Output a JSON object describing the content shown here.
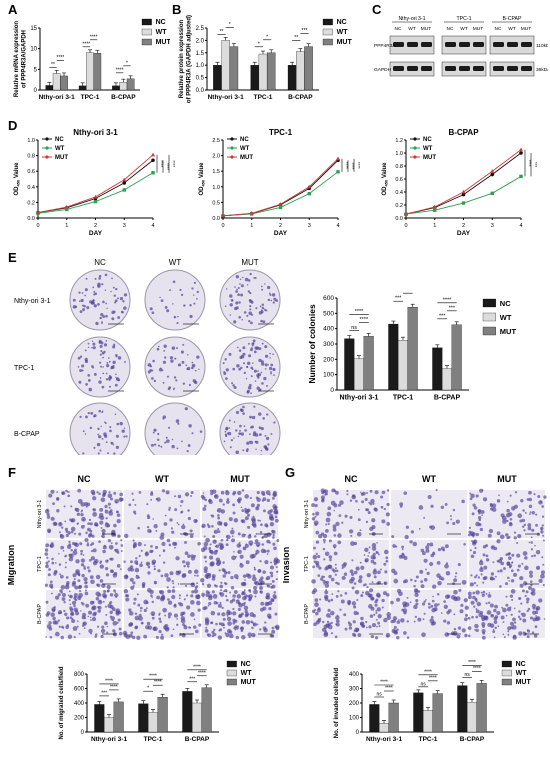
{
  "panels": {
    "A": "A",
    "B": "B",
    "C": "C",
    "D": "D",
    "E": "E",
    "F": "F",
    "G": "G"
  },
  "groups": [
    "NC",
    "WT",
    "MUT"
  ],
  "cells": [
    "Nthy-ori 3-1",
    "TPC-1",
    "B-CPAP"
  ],
  "colors": {
    "nc": "#1a1a1a",
    "wt": "#dcdcdc",
    "mut": "#808080",
    "d_nc": "#111111",
    "d_wt": "#2e9e4f",
    "d_mut": "#d03a3a",
    "stain": "#5a4a9e"
  },
  "blotC": {
    "cell_labels": [
      "Nthy-ori 3-1",
      "TPC-1",
      "B-CPAP"
    ],
    "lane_labels": [
      "NC",
      "WT",
      "MUT"
    ],
    "row_labels": [
      "PPP4R3A",
      "GAPDH"
    ],
    "kda_labels": [
      "110kDa",
      "36kDa"
    ]
  },
  "chartA": {
    "type": "bar",
    "ylabel_lines": [
      "Relative mRNA expression",
      "of PPP4R3A/GAPDH"
    ],
    "ylim": [
      0,
      15
    ],
    "yticks": [
      "0",
      "5",
      "10",
      "15"
    ],
    "categories": [
      "Nthy-ori 3-1",
      "TPC-1",
      "B-CPAP"
    ],
    "series": [
      {
        "name": "NC",
        "values": [
          1.1,
          1.0,
          1.0
        ]
      },
      {
        "name": "WT",
        "values": [
          4.0,
          9.0,
          1.9
        ]
      },
      {
        "name": "MUT",
        "values": [
          3.4,
          8.9,
          2.7
        ]
      }
    ],
    "sig": [
      [
        "**",
        "****"
      ],
      [
        "****",
        "****"
      ],
      [
        "****",
        "*"
      ]
    ]
  },
  "chartB": {
    "type": "bar",
    "ylabel_lines": [
      "Relative protein expression",
      "of PPP4R3A (GAPDH adjusted)"
    ],
    "ylim": [
      0,
      2.5
    ],
    "yticks": [
      "0.0",
      "0.5",
      "1.0",
      "1.5",
      "2.0",
      "2.5"
    ],
    "categories": [
      "Nthy-ori 3-1",
      "TPC-1",
      "B-CPAP"
    ],
    "series": [
      {
        "name": "NC",
        "values": [
          1.0,
          1.0,
          1.0
        ]
      },
      {
        "name": "WT",
        "values": [
          2.0,
          1.45,
          1.55
        ]
      },
      {
        "name": "MUT",
        "values": [
          1.75,
          1.5,
          1.75
        ]
      }
    ],
    "sig": [
      [
        "**",
        "*"
      ],
      [
        "*",
        "*"
      ],
      [
        "**",
        "***"
      ]
    ]
  },
  "chartD": [
    {
      "type": "line",
      "title": "Nthy-ori 3-1",
      "xlabel": "DAY",
      "ylim": [
        0,
        1.0
      ],
      "yticks": [
        "0.0",
        "0.2",
        "0.4",
        "0.6",
        "0.8",
        "1.0"
      ],
      "x": [
        0,
        1,
        2,
        3,
        4
      ],
      "series": [
        {
          "name": "NC",
          "values": [
            0.07,
            0.13,
            0.25,
            0.45,
            0.74
          ]
        },
        {
          "name": "WT",
          "values": [
            0.06,
            0.11,
            0.21,
            0.36,
            0.58
          ]
        },
        {
          "name": "MUT",
          "values": [
            0.07,
            0.14,
            0.27,
            0.49,
            0.81
          ]
        }
      ],
      "sig": [
        "****",
        "****",
        "****"
      ]
    },
    {
      "type": "line",
      "title": "TPC-1",
      "xlabel": "DAY",
      "ylim": [
        0,
        2.5
      ],
      "yticks": [
        "0.0",
        "0.5",
        "1.0",
        "1.5",
        "2.0",
        "2.5"
      ],
      "x": [
        0,
        1,
        2,
        3,
        4
      ],
      "series": [
        {
          "name": "NC",
          "values": [
            0.07,
            0.14,
            0.42,
            0.95,
            1.85
          ]
        },
        {
          "name": "WT",
          "values": [
            0.07,
            0.13,
            0.34,
            0.78,
            1.48
          ]
        },
        {
          "name": "MUT",
          "values": [
            0.07,
            0.15,
            0.44,
            1.0,
            1.9
          ]
        }
      ],
      "sig": [
        "****",
        "****",
        "****"
      ]
    },
    {
      "type": "line",
      "title": "B-CPAP",
      "xlabel": "DAY",
      "ylim": [
        0,
        1.2
      ],
      "yticks": [
        "0.0",
        "0.2",
        "0.4",
        "0.6",
        "0.8",
        "1.0",
        "1.2"
      ],
      "x": [
        0,
        1,
        2,
        3,
        4
      ],
      "series": [
        {
          "name": "NC",
          "values": [
            0.06,
            0.16,
            0.36,
            0.67,
            1.0
          ]
        },
        {
          "name": "WT",
          "values": [
            0.06,
            0.12,
            0.23,
            0.38,
            0.64
          ]
        },
        {
          "name": "MUT",
          "values": [
            0.06,
            0.17,
            0.4,
            0.72,
            1.05
          ]
        }
      ],
      "sig": [
        "****",
        "***"
      ]
    }
  ],
  "chartE": {
    "type": "bar",
    "ylabel": "Number of colonies",
    "ylim": [
      0,
      600
    ],
    "yticks": [
      "0",
      "100",
      "200",
      "300",
      "400",
      "500",
      "600"
    ],
    "categories": [
      "Nthy-ori 3-1",
      "TPC-1",
      "B-CPAP"
    ],
    "series": [
      {
        "name": "NC",
        "values": [
          335,
          430,
          275
        ]
      },
      {
        "name": "WT",
        "values": [
          205,
          325,
          140
        ]
      },
      {
        "name": "MUT",
        "values": [
          350,
          540,
          425
        ]
      }
    ],
    "sig": [
      [
        "ns",
        "****",
        "****"
      ],
      [
        "***",
        "***",
        "****"
      ],
      [
        "***",
        "***",
        "****"
      ]
    ]
  },
  "chartF": {
    "type": "bar",
    "ylabel_lines": [
      "No. of migrated cells/field"
    ],
    "ylim": [
      0,
      800
    ],
    "yticks": [
      "0",
      "200",
      "400",
      "600",
      "800"
    ],
    "categories": [
      "Nthy-ori 3-1",
      "TPC-1",
      "B-CPAP"
    ],
    "series": [
      {
        "name": "NC",
        "values": [
          380,
          390,
          560
        ]
      },
      {
        "name": "WT",
        "values": [
          200,
          270,
          400
        ]
      },
      {
        "name": "MUT",
        "values": [
          415,
          480,
          610
        ]
      }
    ],
    "sig": [
      [
        "***",
        "****",
        "****"
      ],
      [
        "*",
        "****",
        "****"
      ],
      [
        "***",
        "****",
        "****"
      ]
    ]
  },
  "chartG": {
    "type": "bar",
    "ylabel_lines": [
      "No. of invaded cells/field"
    ],
    "ylim": [
      0,
      400
    ],
    "yticks": [
      "0",
      "100",
      "200",
      "300",
      "400"
    ],
    "categories": [
      "Nthy-ori 3-1",
      "TPC-1",
      "B-CPAP"
    ],
    "series": [
      {
        "name": "NC",
        "values": [
          190,
          270,
          320
        ]
      },
      {
        "name": "WT",
        "values": [
          60,
          150,
          205
        ]
      },
      {
        "name": "MUT",
        "values": [
          200,
          265,
          335
        ]
      }
    ],
    "sig": [
      [
        "ns",
        "****",
        "****"
      ],
      [
        "ns",
        "****",
        "****"
      ],
      [
        "ns",
        "****",
        "****"
      ]
    ]
  },
  "imageGridE": {
    "col_labels": [
      "NC",
      "WT",
      "MUT"
    ],
    "row_labels": [
      "Nthy-ori 3-1",
      "TPC-1",
      "B-CPAP"
    ]
  },
  "imageGridF": {
    "col_labels": [
      "NC",
      "WT",
      "MUT"
    ],
    "row_labels": [
      "Nthy-ori 3-1",
      "TPC-1",
      "B-CPAP"
    ],
    "side_label": "Migration"
  },
  "imageGridG": {
    "col_labels": [
      "NC",
      "WT",
      "MUT"
    ],
    "row_labels": [
      "Nthy-ori 3-1",
      "TPC-1",
      "B-CPAP"
    ],
    "side_label": "Invasion"
  }
}
